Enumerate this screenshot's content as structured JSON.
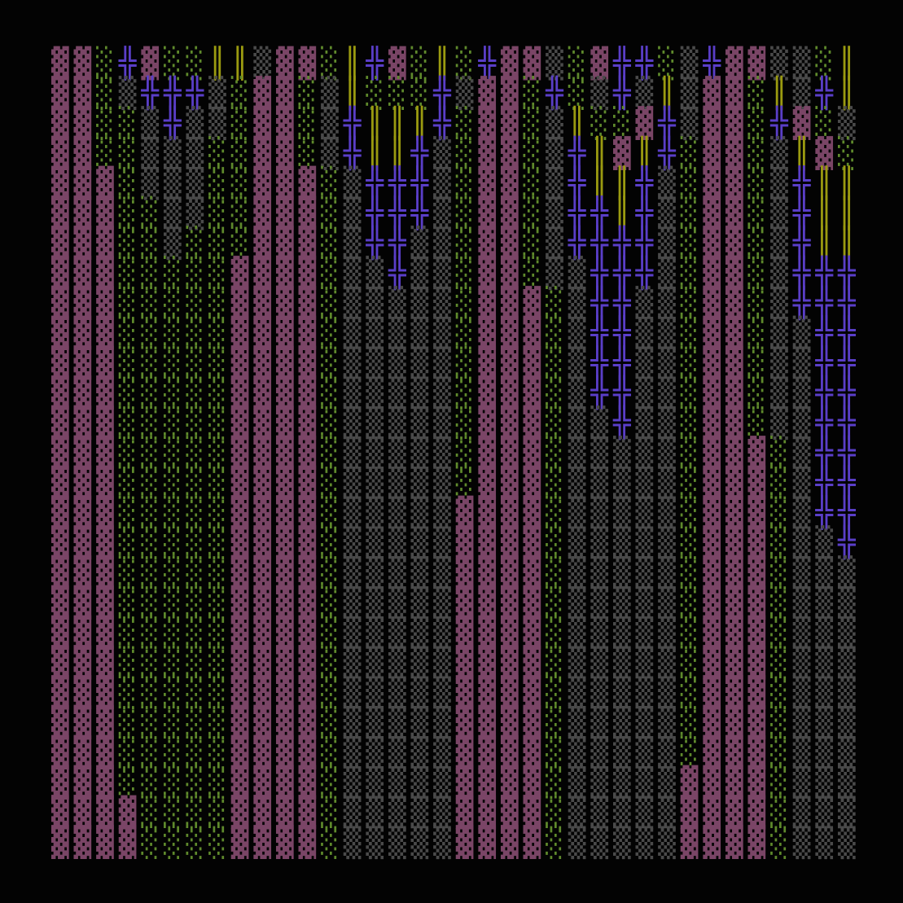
{
  "grid": {
    "palette": {
      "▓": "#7a4566",
      "░": "#5f8a2c",
      "▒": "#4a4a4a",
      "╬": "#5a3ec8",
      "║": "#9a9a10"
    },
    "rows": [
      "▓▓░╬▓░░║║▒▓▓░║╬▓░║░╬▓▓▒░▓╬╬░▒╬▓▓▒▒░║",
      "▓▓░▒╬╬╬▒░▓▓░▒║░░░╬▒▓▓░╬░▒╬▒║▒▓▓░║▒╬║",
      "▓▓░░▒╬▒▒░▓▓░▒╬║║║╬░▓▓░▒║░░▓╬▒▓▓░╬▓░▒",
      "▓▓░░▒▒▒░░▓▓░▒╬║║╬▒░▓▓░▒╬║▓║╬░▓▓░▒║▓░",
      "▓▓▓░▒▒▒░░▓▓▓░▒╬╬╬▒░▓▓░▒╬║║╬▒░▓▓░▒╬║║",
      "▓▓▓░░▒▒░░▓▓▓░▒╬╬╬▒░▓▓░▒╬╬║╬▒░▓▓░▒╬║║",
      "▓▓▓░░▒░░░▓▓▓░▒╬╬▒▒░▓▓░▒╬╬╬╬▒░▓▓░▒╬║║",
      "▓▓▓░░░░░▓▓▓▓░▒▒╬▒▒░▓▓░▒▒╬╬╬▒░▓▓░▒╬╬╬",
      "▓▓▓░░░░░▓▓▓▓░▒▒▒▒▒░▓▓▓░▒╬╬▒▒░▓▓░▒╬╬╬",
      "▓▓▓░░░░░▓▓▓▓░▒▒▒▒▒░▓▓▓░▒╬╬▒▒░▓▓░▒▒╬╬",
      "▓▓▓░░░░░▓▓▓▓░▒▒▒▒▒░▓▓▓░▒╬╬▒▒░▓▓░▒▒╬╬",
      "▓▓▓░░░░░▓▓▓▓░▒▒▒▒▒░▓▓▓░▒╬╬▒▒░▓▓░▒▒╬╬",
      "▓▓▓░░░░░▓▓▓▓░▒▒▒▒▒░▓▓▓░▒▒╬▒▒░▓▓░▒▒╬╬",
      "▓▓▓░░░░░▓▓▓▓░▒▒▒▒▒░▓▓▓░▒▒▒▒▒░▓▓▓░▒╬╬",
      "▓▓▓░░░░░▓▓▓▓░▒▒▒▒▒░▓▓▓░▒▒▒▒▒░▓▓▓░▒╬╬",
      "▓▓▓░░░░░▓▓▓▓░▒▒▒▒▒▓▓▓▓░▒▒▒▒▒░▓▓▓░▒╬╬",
      "▓▓▓░░░░░▓▓▓▓░▒▒▒▒▒▓▓▓▓░▒▒▒▒▒░▓▓▓░▒▒╬",
      "▓▓▓░░░░░▓▓▓▓░▒▒▒▒▒▓▓▓▓░▒▒▒▒▒░▓▓▓░▒▒▒",
      "▓▓▓░░░░░▓▓▓▓░▒▒▒▒▒▓▓▓▓░▒▒▒▒▒░▓▓▓░▒▒▒",
      "▓▓▓░░░░░▓▓▓▓░▒▒▒▒▒▓▓▓▓░▒▒▒▒▒░▓▓▓░▒▒▒",
      "▓▓▓░░░░░▓▓▓▓░▒▒▒▒▒▓▓▓▓░▒▒▒▒▒░▓▓▓░▒▒▒",
      "▓▓▓░░░░░▓▓▓▓░▒▒▒▒▒▓▓▓▓░▒▒▒▒▒░▓▓▓░▒▒▒",
      "▓▓▓░░░░░▓▓▓▓░▒▒▒▒▒▓▓▓▓░▒▒▒▒▒░▓▓▓░▒▒▒",
      "▓▓▓░░░░░▓▓▓▓░▒▒▒▒▒▓▓▓▓░▒▒▒▒▒░▓▓▓░▒▒▒",
      "▓▓▓░░░░░▓▓▓▓░▒▒▒▒▒▓▓▓▓░▒▒▒▒▒▓▓▓▓░▒▒▒",
      "▓▓▓▓░░░░▓▓▓▓░▒▒▒▒▒▓▓▓▓░▒▒▒▒▒▓▓▓▓░▒▒▒",
      "▓▓▓▓░░░░▓▓▓▓░▒▒▒▒▒▓▓▓▓░▒▒▒▒▒▓▓▓▓░▒▒▒"
    ]
  }
}
